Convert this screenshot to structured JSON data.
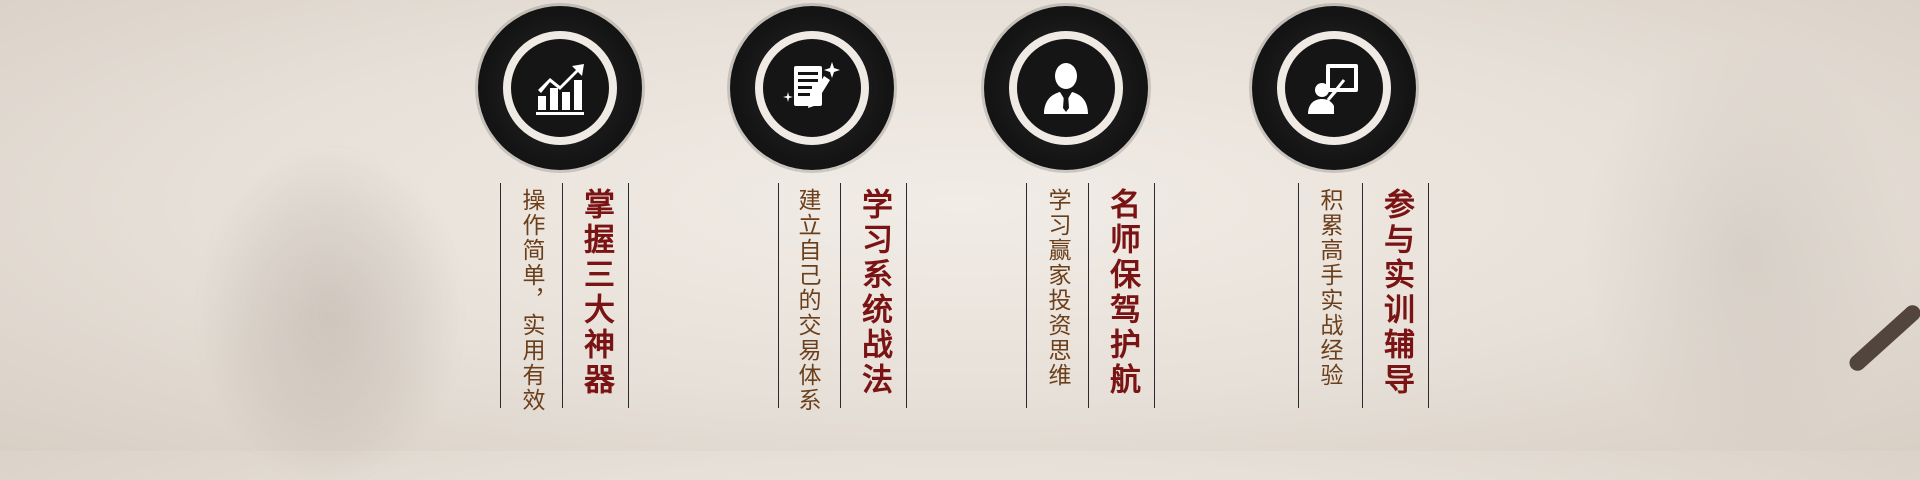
{
  "features": [
    {
      "icon": "growth-chart-icon",
      "title": "掌握三大神器",
      "subtitle": "操作简单，实用有效"
    },
    {
      "icon": "document-pen-icon",
      "title": "学习系统战法",
      "subtitle": "建立自己的交易体系"
    },
    {
      "icon": "businessman-icon",
      "title": "名师保驾护航",
      "subtitle": "学习赢家投资思维"
    },
    {
      "icon": "teacher-board-icon",
      "title": "参与实训辅导",
      "subtitle": "积累高手实战经验"
    }
  ]
}
